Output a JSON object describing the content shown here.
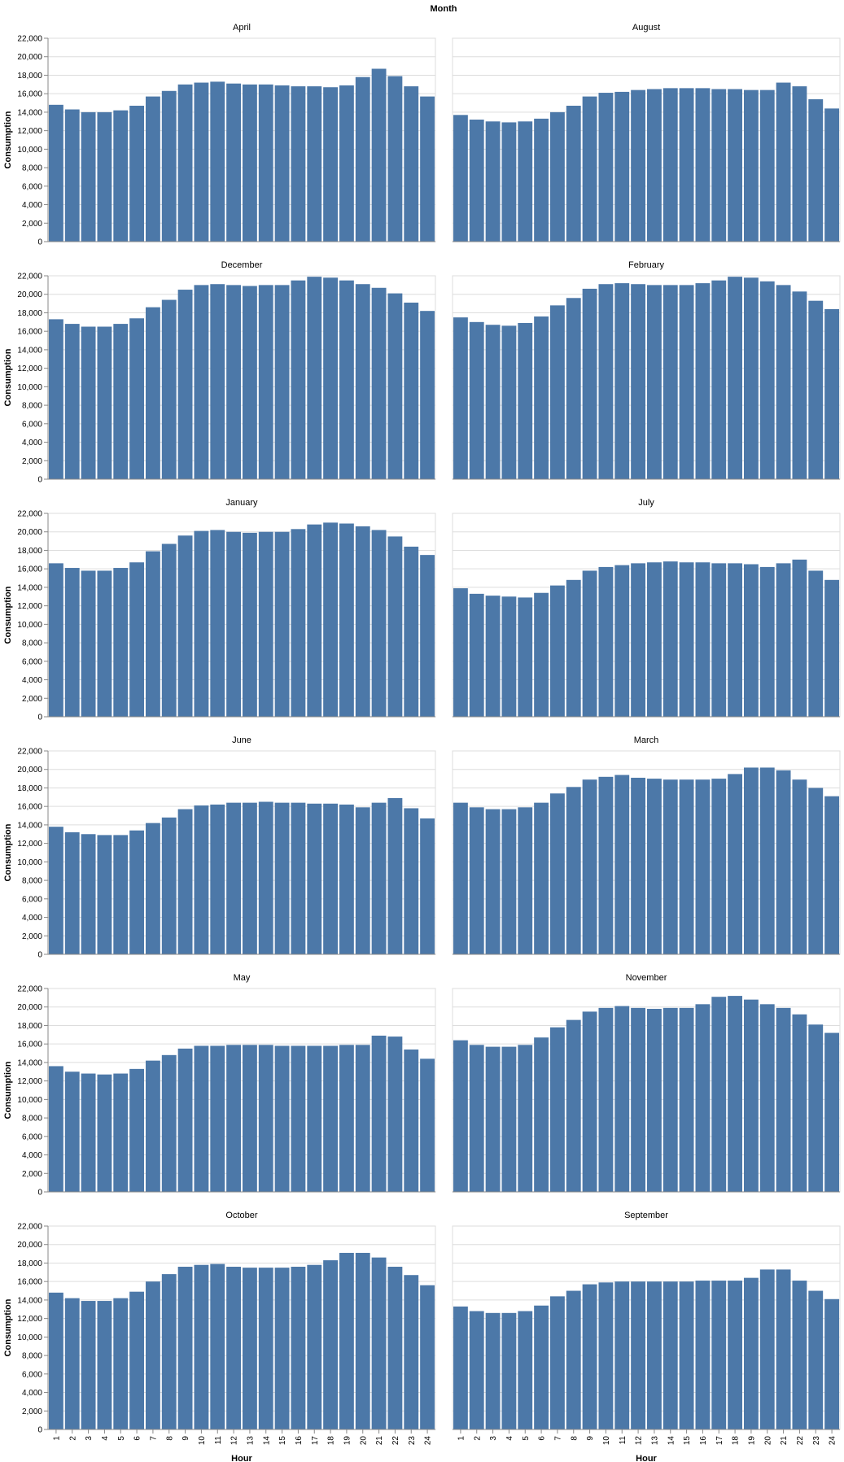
{
  "chart_data": {
    "type": "bar",
    "title": "Month",
    "xlabel": "Hour",
    "ylabel": "Consumption",
    "ylim": [
      0,
      22000
    ],
    "yticks": [
      "0",
      "2,000",
      "4,000",
      "6,000",
      "8,000",
      "10,000",
      "12,000",
      "14,000",
      "16,000",
      "18,000",
      "20,000",
      "22,000"
    ],
    "grid": true,
    "bar_color": "#4c78a8",
    "categories": [
      "1",
      "2",
      "3",
      "4",
      "5",
      "6",
      "7",
      "8",
      "9",
      "10",
      "11",
      "12",
      "13",
      "14",
      "15",
      "16",
      "17",
      "18",
      "19",
      "20",
      "21",
      "22",
      "23",
      "24"
    ],
    "facets": [
      {
        "name": "April",
        "values": [
          14800,
          14300,
          14000,
          14000,
          14200,
          14700,
          15700,
          16300,
          17000,
          17200,
          17300,
          17100,
          17000,
          17000,
          16900,
          16800,
          16800,
          16700,
          16900,
          17800,
          18700,
          17900,
          16800,
          15700
        ]
      },
      {
        "name": "August",
        "values": [
          13700,
          13200,
          13000,
          12900,
          13000,
          13300,
          14000,
          14700,
          15700,
          16100,
          16200,
          16400,
          16500,
          16600,
          16600,
          16600,
          16500,
          16500,
          16400,
          16400,
          17200,
          16800,
          15400,
          14400
        ]
      },
      {
        "name": "December",
        "values": [
          17300,
          16800,
          16500,
          16500,
          16800,
          17400,
          18600,
          19400,
          20500,
          21000,
          21100,
          21000,
          20900,
          21000,
          21000,
          21500,
          21900,
          21800,
          21500,
          21100,
          20700,
          20100,
          19100,
          18200
        ]
      },
      {
        "name": "February",
        "values": [
          17500,
          17000,
          16700,
          16600,
          16900,
          17600,
          18800,
          19600,
          20600,
          21100,
          21200,
          21100,
          21000,
          21000,
          21000,
          21200,
          21500,
          21900,
          21800,
          21400,
          21000,
          20300,
          19300,
          18400
        ]
      },
      {
        "name": "January",
        "values": [
          16600,
          16100,
          15800,
          15800,
          16100,
          16700,
          17900,
          18700,
          19600,
          20100,
          20200,
          20000,
          19900,
          20000,
          20000,
          20300,
          20800,
          21000,
          20900,
          20600,
          20200,
          19500,
          18400,
          17500
        ]
      },
      {
        "name": "July",
        "values": [
          13900,
          13300,
          13100,
          13000,
          12900,
          13400,
          14200,
          14800,
          15800,
          16200,
          16400,
          16600,
          16700,
          16800,
          16700,
          16700,
          16600,
          16600,
          16500,
          16200,
          16600,
          17000,
          15800,
          14800
        ]
      },
      {
        "name": "June",
        "values": [
          13800,
          13200,
          13000,
          12900,
          12900,
          13400,
          14200,
          14800,
          15700,
          16100,
          16200,
          16400,
          16400,
          16500,
          16400,
          16400,
          16300,
          16300,
          16200,
          15900,
          16400,
          16900,
          15800,
          14700
        ]
      },
      {
        "name": "March",
        "values": [
          16400,
          15900,
          15700,
          15700,
          15900,
          16400,
          17400,
          18100,
          18900,
          19200,
          19400,
          19100,
          19000,
          18900,
          18900,
          18900,
          19000,
          19500,
          20200,
          20200,
          19900,
          18900,
          18000,
          17100
        ]
      },
      {
        "name": "May",
        "values": [
          13600,
          13000,
          12800,
          12700,
          12800,
          13300,
          14200,
          14800,
          15500,
          15800,
          15800,
          15900,
          15900,
          15900,
          15800,
          15800,
          15800,
          15800,
          15900,
          15900,
          16900,
          16800,
          15400,
          14400
        ]
      },
      {
        "name": "November",
        "values": [
          16400,
          15900,
          15700,
          15700,
          15900,
          16700,
          17800,
          18600,
          19500,
          19900,
          20100,
          19900,
          19800,
          19900,
          19900,
          20300,
          21100,
          21200,
          20800,
          20300,
          19900,
          19200,
          18100,
          17200
        ]
      },
      {
        "name": "October",
        "values": [
          14800,
          14200,
          13900,
          13900,
          14200,
          14900,
          16000,
          16800,
          17600,
          17800,
          17900,
          17600,
          17500,
          17500,
          17500,
          17600,
          17800,
          18300,
          19100,
          19100,
          18600,
          17600,
          16700,
          15600
        ]
      },
      {
        "name": "September",
        "values": [
          13300,
          12800,
          12600,
          12600,
          12800,
          13400,
          14400,
          15000,
          15700,
          15900,
          16000,
          16000,
          16000,
          16000,
          16000,
          16100,
          16100,
          16100,
          16400,
          17300,
          17300,
          16100,
          15000,
          14100
        ]
      }
    ]
  }
}
